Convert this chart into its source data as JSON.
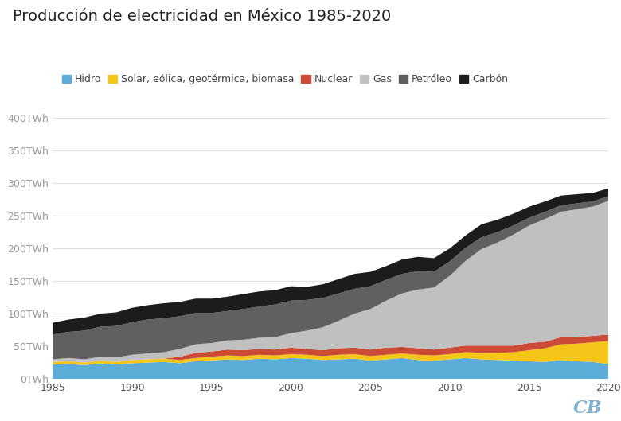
{
  "title": "Producción de electricidad en México 1985-2020",
  "years": [
    1985,
    1986,
    1987,
    1988,
    1989,
    1990,
    1991,
    1992,
    1993,
    1994,
    1995,
    1996,
    1997,
    1998,
    1999,
    2000,
    2001,
    2002,
    2003,
    2004,
    2005,
    2006,
    2007,
    2008,
    2009,
    2010,
    2011,
    2012,
    2013,
    2014,
    2015,
    2016,
    2017,
    2018,
    2019,
    2020
  ],
  "series": {
    "Hidro": [
      22,
      23,
      21,
      24,
      22,
      24,
      25,
      26,
      24,
      27,
      28,
      30,
      29,
      31,
      30,
      32,
      31,
      29,
      30,
      31,
      28,
      30,
      32,
      29,
      28,
      30,
      32,
      30,
      29,
      28,
      27,
      26,
      29,
      27,
      26,
      23
    ],
    "Solar, eólica, geotérmica, biomasa": [
      4,
      4,
      4,
      4,
      4,
      5,
      5,
      5,
      5,
      5,
      6,
      6,
      6,
      6,
      6,
      6,
      6,
      6,
      7,
      7,
      7,
      7,
      7,
      8,
      8,
      8,
      9,
      10,
      11,
      13,
      17,
      21,
      24,
      27,
      30,
      35
    ],
    "Nuclear": [
      0,
      0,
      0,
      0,
      0,
      0,
      0,
      0,
      5,
      8,
      8,
      9,
      9,
      9,
      9,
      10,
      9,
      9,
      10,
      10,
      10,
      11,
      10,
      10,
      9,
      10,
      10,
      11,
      11,
      10,
      11,
      10,
      11,
      10,
      10,
      10
    ],
    "Gas": [
      4,
      5,
      5,
      6,
      7,
      8,
      9,
      10,
      12,
      13,
      13,
      14,
      16,
      17,
      19,
      22,
      28,
      35,
      42,
      52,
      62,
      72,
      82,
      90,
      95,
      110,
      130,
      148,
      158,
      170,
      180,
      188,
      192,
      196,
      198,
      205
    ],
    "Petróleo": [
      38,
      40,
      44,
      46,
      48,
      50,
      52,
      52,
      50,
      48,
      46,
      45,
      47,
      48,
      50,
      50,
      47,
      45,
      42,
      38,
      35,
      32,
      30,
      28,
      24,
      22,
      20,
      18,
      16,
      14,
      12,
      11,
      10,
      9,
      8,
      7
    ],
    "Carbón": [
      18,
      19,
      20,
      20,
      21,
      22,
      22,
      23,
      22,
      22,
      22,
      22,
      23,
      23,
      22,
      22,
      20,
      21,
      22,
      23,
      22,
      21,
      22,
      22,
      21,
      20,
      19,
      20,
      19,
      18,
      17,
      16,
      15,
      14,
      13,
      12
    ]
  },
  "colors": {
    "Hidro": "#5BACD6",
    "Solar, eólica, geotérmica, biomasa": "#F5C518",
    "Nuclear": "#CC4B37",
    "Gas": "#C0C0C0",
    "Petróleo": "#606060",
    "Carbón": "#1C1C1C"
  },
  "ylim": [
    0,
    400
  ],
  "yticks": [
    0,
    50,
    100,
    150,
    200,
    250,
    300,
    350,
    400
  ],
  "ytick_labels": [
    "0TWh",
    "50TWh",
    "100TWh",
    "150TWh",
    "200TWh",
    "250TWh",
    "300TWh",
    "350TWh",
    "400TWh"
  ],
  "xticks": [
    1985,
    1990,
    1995,
    2000,
    2005,
    2010,
    2015,
    2020
  ],
  "background_color": "#ffffff",
  "grid_color": "#e0e0e0",
  "title_fontsize": 14,
  "tick_fontsize": 9,
  "legend_fontsize": 9,
  "watermark": "CB",
  "watermark_color": "#7FB3D3"
}
